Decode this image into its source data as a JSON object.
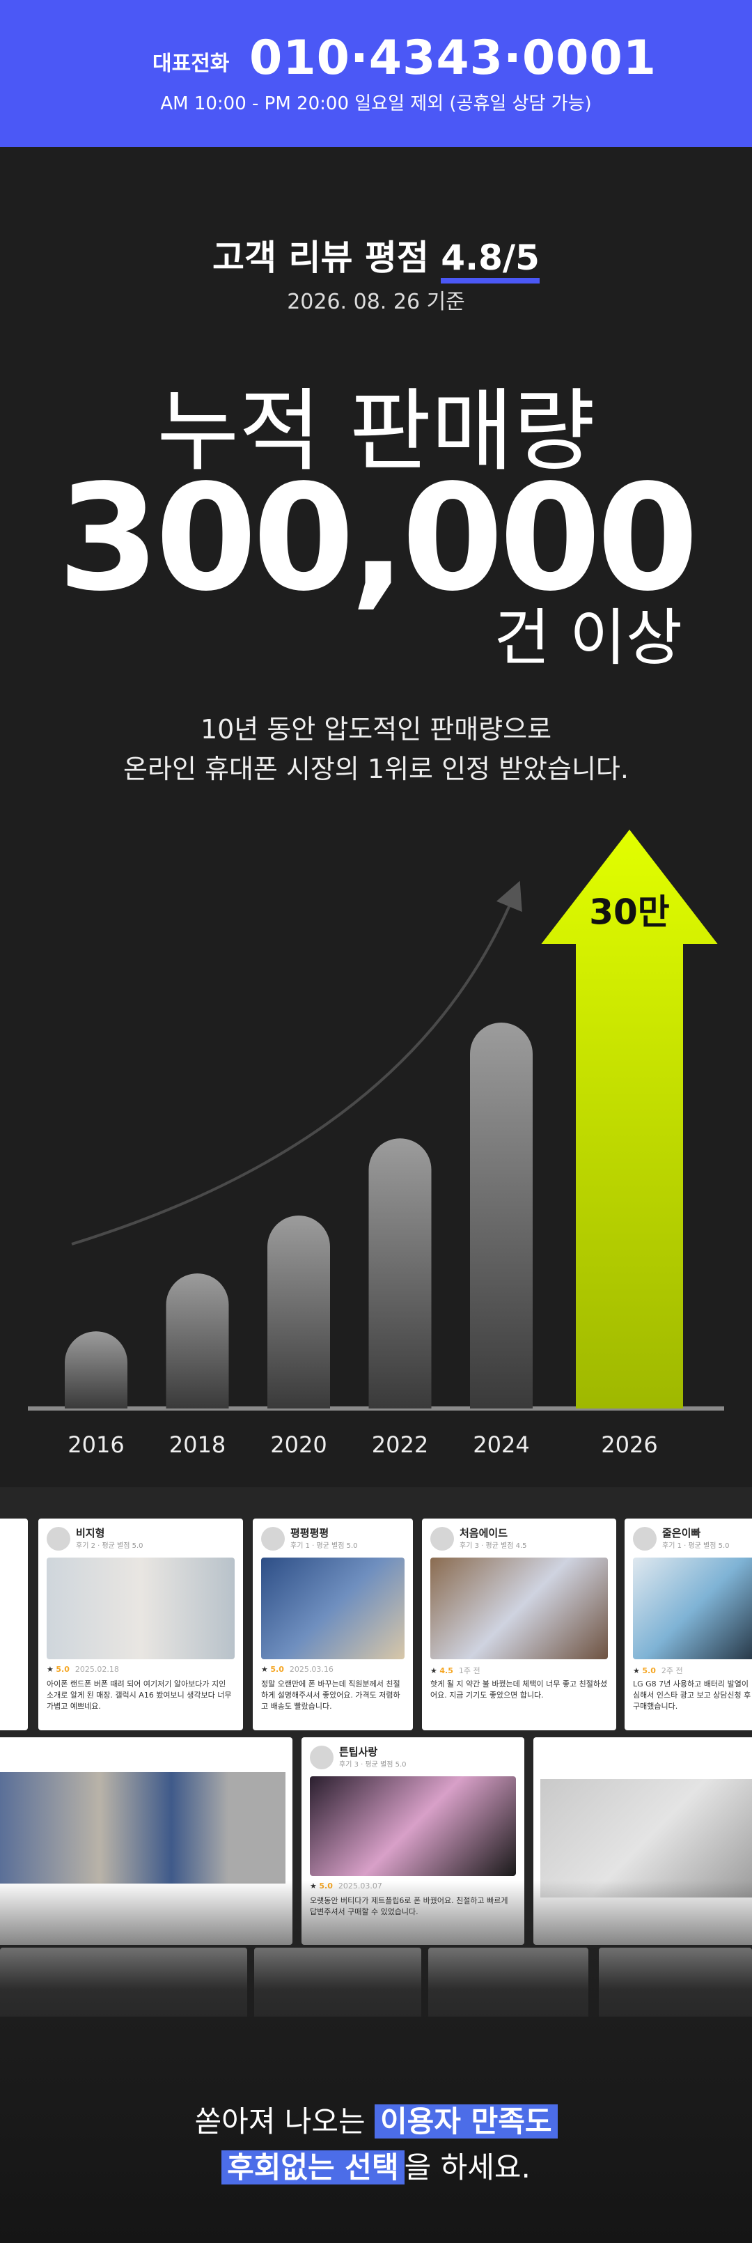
{
  "header": {
    "phone_label": "대표전화",
    "phone": "010·4343·0001",
    "hours": "AM 10:00 - PM 20:00 일요일 제외 (공휴일 상담 가능)"
  },
  "rating": {
    "prefix": "고객 리뷰 평점",
    "score": "4.8/5",
    "date": "2026. 08. 26 기준"
  },
  "sales": {
    "title": "누적 판매량",
    "number": "300,000",
    "suffix": "건 이상",
    "desc": [
      "10년 동안 압도적인 판매량으로",
      "온라인 휴대폰 시장의 1위로 인정 받았습니다."
    ]
  },
  "chart_data": {
    "type": "bar",
    "categories": [
      "2016",
      "2018",
      "2020",
      "2022",
      "2024",
      "2026"
    ],
    "values": [
      4,
      7,
      10,
      14,
      20,
      30
    ],
    "value_labels": [
      null,
      null,
      null,
      null,
      null,
      "30만"
    ],
    "ylim": [
      0,
      30
    ],
    "color": "#8c8c8c",
    "highlight_color": "#d6f200"
  },
  "reviews": [
    {
      "name": "비지형",
      "meta": "후기 2 · 평균 별점 5.0",
      "rating": "5.0",
      "date": "2025.02.18",
      "text": "아이폰 랜드폰 버폰 때려 되어 여기저기 알아보다가 지인 소개로 알게 된 매장. 갤럭시 A16 봤여보니 생각보다 너무 가볍고 예쁘네요."
    },
    {
      "name": "평평평평",
      "meta": "후기 1 · 평균 별점 5.0",
      "rating": "5.0",
      "date": "2025.03.16",
      "text": "정말 오랜만에 폰 바꾸는데 직원분께서 친절하게 설명해주셔서 좋았어요. 가격도 저렴하고 배송도 빨랐습니다."
    },
    {
      "name": "처음에이드",
      "meta": "후기 3 · 평균 별점 4.5",
      "rating": "4.5",
      "date": "1주 전",
      "text": "핫게 될 지 약간 불 바꿨는데 체택이 너무 좋고 친절하셨어요. 지금 기기도 좋았으면 합니다."
    },
    {
      "name": "줄은이빠",
      "meta": "후기 1 · 평균 별점 5.0",
      "rating": "5.0",
      "date": "2주 전",
      "text": "LG G8 7년 사용하고 배터리 발열이 심해서 인스타 광고 보고 상담신청 후 구매했습니다."
    },
    {
      "name": "튼팁사랑",
      "meta": "후기 3 · 평균 별점 5.0",
      "rating": "5.0",
      "date": "2025.03.07",
      "text": "오랫동안 버티다가 제트플립6로 폰 바꿨어요. 친절하고 빠르게 답변주셔서 구매할 수 있었습니다."
    }
  ],
  "closing": {
    "line1": [
      "쏟아져 나오는 ",
      "이용자 만족도"
    ],
    "line2": [
      "후회없는 선택",
      "을 하세요."
    ]
  }
}
